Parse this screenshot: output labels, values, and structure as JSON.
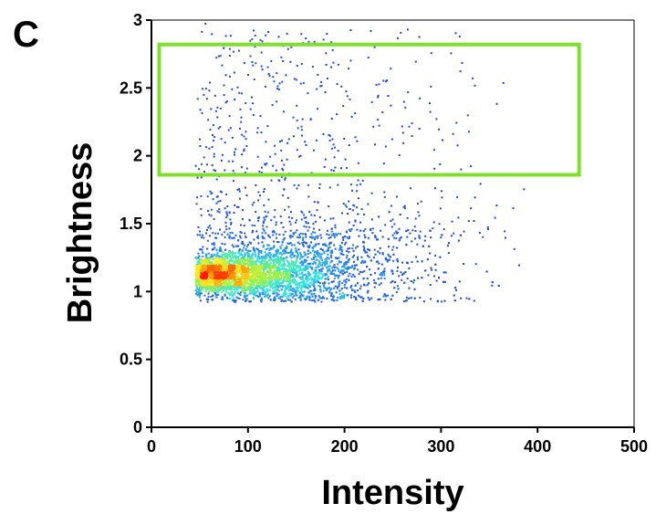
{
  "panel_label": "C",
  "colors": {
    "gate": "#7ee02a",
    "density_low": "#1f3fd6",
    "density_mid": "#2ee6e0",
    "density_high": "#ff1a00"
  },
  "chart_data": {
    "type": "scatter",
    "title": "",
    "xlabel": "Intensity",
    "ylabel": "Brightness",
    "xlim": [
      0,
      500
    ],
    "ylim": [
      0,
      3
    ],
    "xticks": [
      0,
      100,
      200,
      300,
      400,
      500
    ],
    "yticks": [
      0,
      0.5,
      1,
      1.5,
      2,
      2.5,
      3
    ],
    "xtick_labels": [
      "0",
      "100",
      "200",
      "300",
      "400",
      "500"
    ],
    "ytick_labels": [
      "0",
      "0.5",
      "1",
      "1.5",
      "2",
      "2.5",
      "3"
    ],
    "grid": false,
    "legend": "none",
    "color_encoding": "point density (blue = low, cyan/green = medium, yellow/red = high)",
    "gate": {
      "x": [
        8,
        443
      ],
      "y": [
        1.86,
        2.82
      ]
    },
    "density_core": {
      "x": 58,
      "y": 1.13
    },
    "population": {
      "x_range": [
        45,
        385
      ],
      "y_range": [
        0.93,
        3.0
      ],
      "main_band_y": [
        1.0,
        1.5
      ]
    },
    "sample_points": [
      [
        55,
        2.98
      ],
      [
        105,
        2.93
      ],
      [
        112,
        2.86
      ],
      [
        74,
        2.8
      ],
      [
        85,
        2.62
      ],
      [
        52,
        2.5
      ],
      [
        65,
        2.45
      ],
      [
        90,
        2.47
      ],
      [
        150,
        2.67
      ],
      [
        273,
        2.7
      ],
      [
        130,
        2.52
      ],
      [
        175,
        2.55
      ],
      [
        234,
        2.45
      ],
      [
        80,
        2.3
      ],
      [
        112,
        2.3
      ],
      [
        186,
        2.28
      ],
      [
        210,
        2.32
      ],
      [
        315,
        2.25
      ],
      [
        60,
        2.2
      ],
      [
        95,
        2.15
      ],
      [
        140,
        2.1
      ],
      [
        170,
        2.12
      ],
      [
        260,
        2.1
      ],
      [
        292,
        2.05
      ],
      [
        64,
        2.02
      ],
      [
        122,
        2.0
      ],
      [
        200,
        1.98
      ],
      [
        240,
        1.95
      ],
      [
        330,
        1.93
      ],
      [
        75,
        1.9
      ],
      [
        165,
        1.88
      ],
      [
        250,
        1.87
      ],
      [
        385,
        1.76
      ],
      [
        340,
        1.8
      ],
      [
        300,
        1.7
      ],
      [
        355,
        1.55
      ],
      [
        330,
        1.62
      ],
      [
        365,
        1.45
      ],
      [
        375,
        1.32
      ],
      [
        352,
        1.05
      ],
      [
        50,
        0.94
      ],
      [
        48,
        1.0
      ],
      [
        60,
        1.02
      ],
      [
        380,
        1.2
      ]
    ]
  }
}
